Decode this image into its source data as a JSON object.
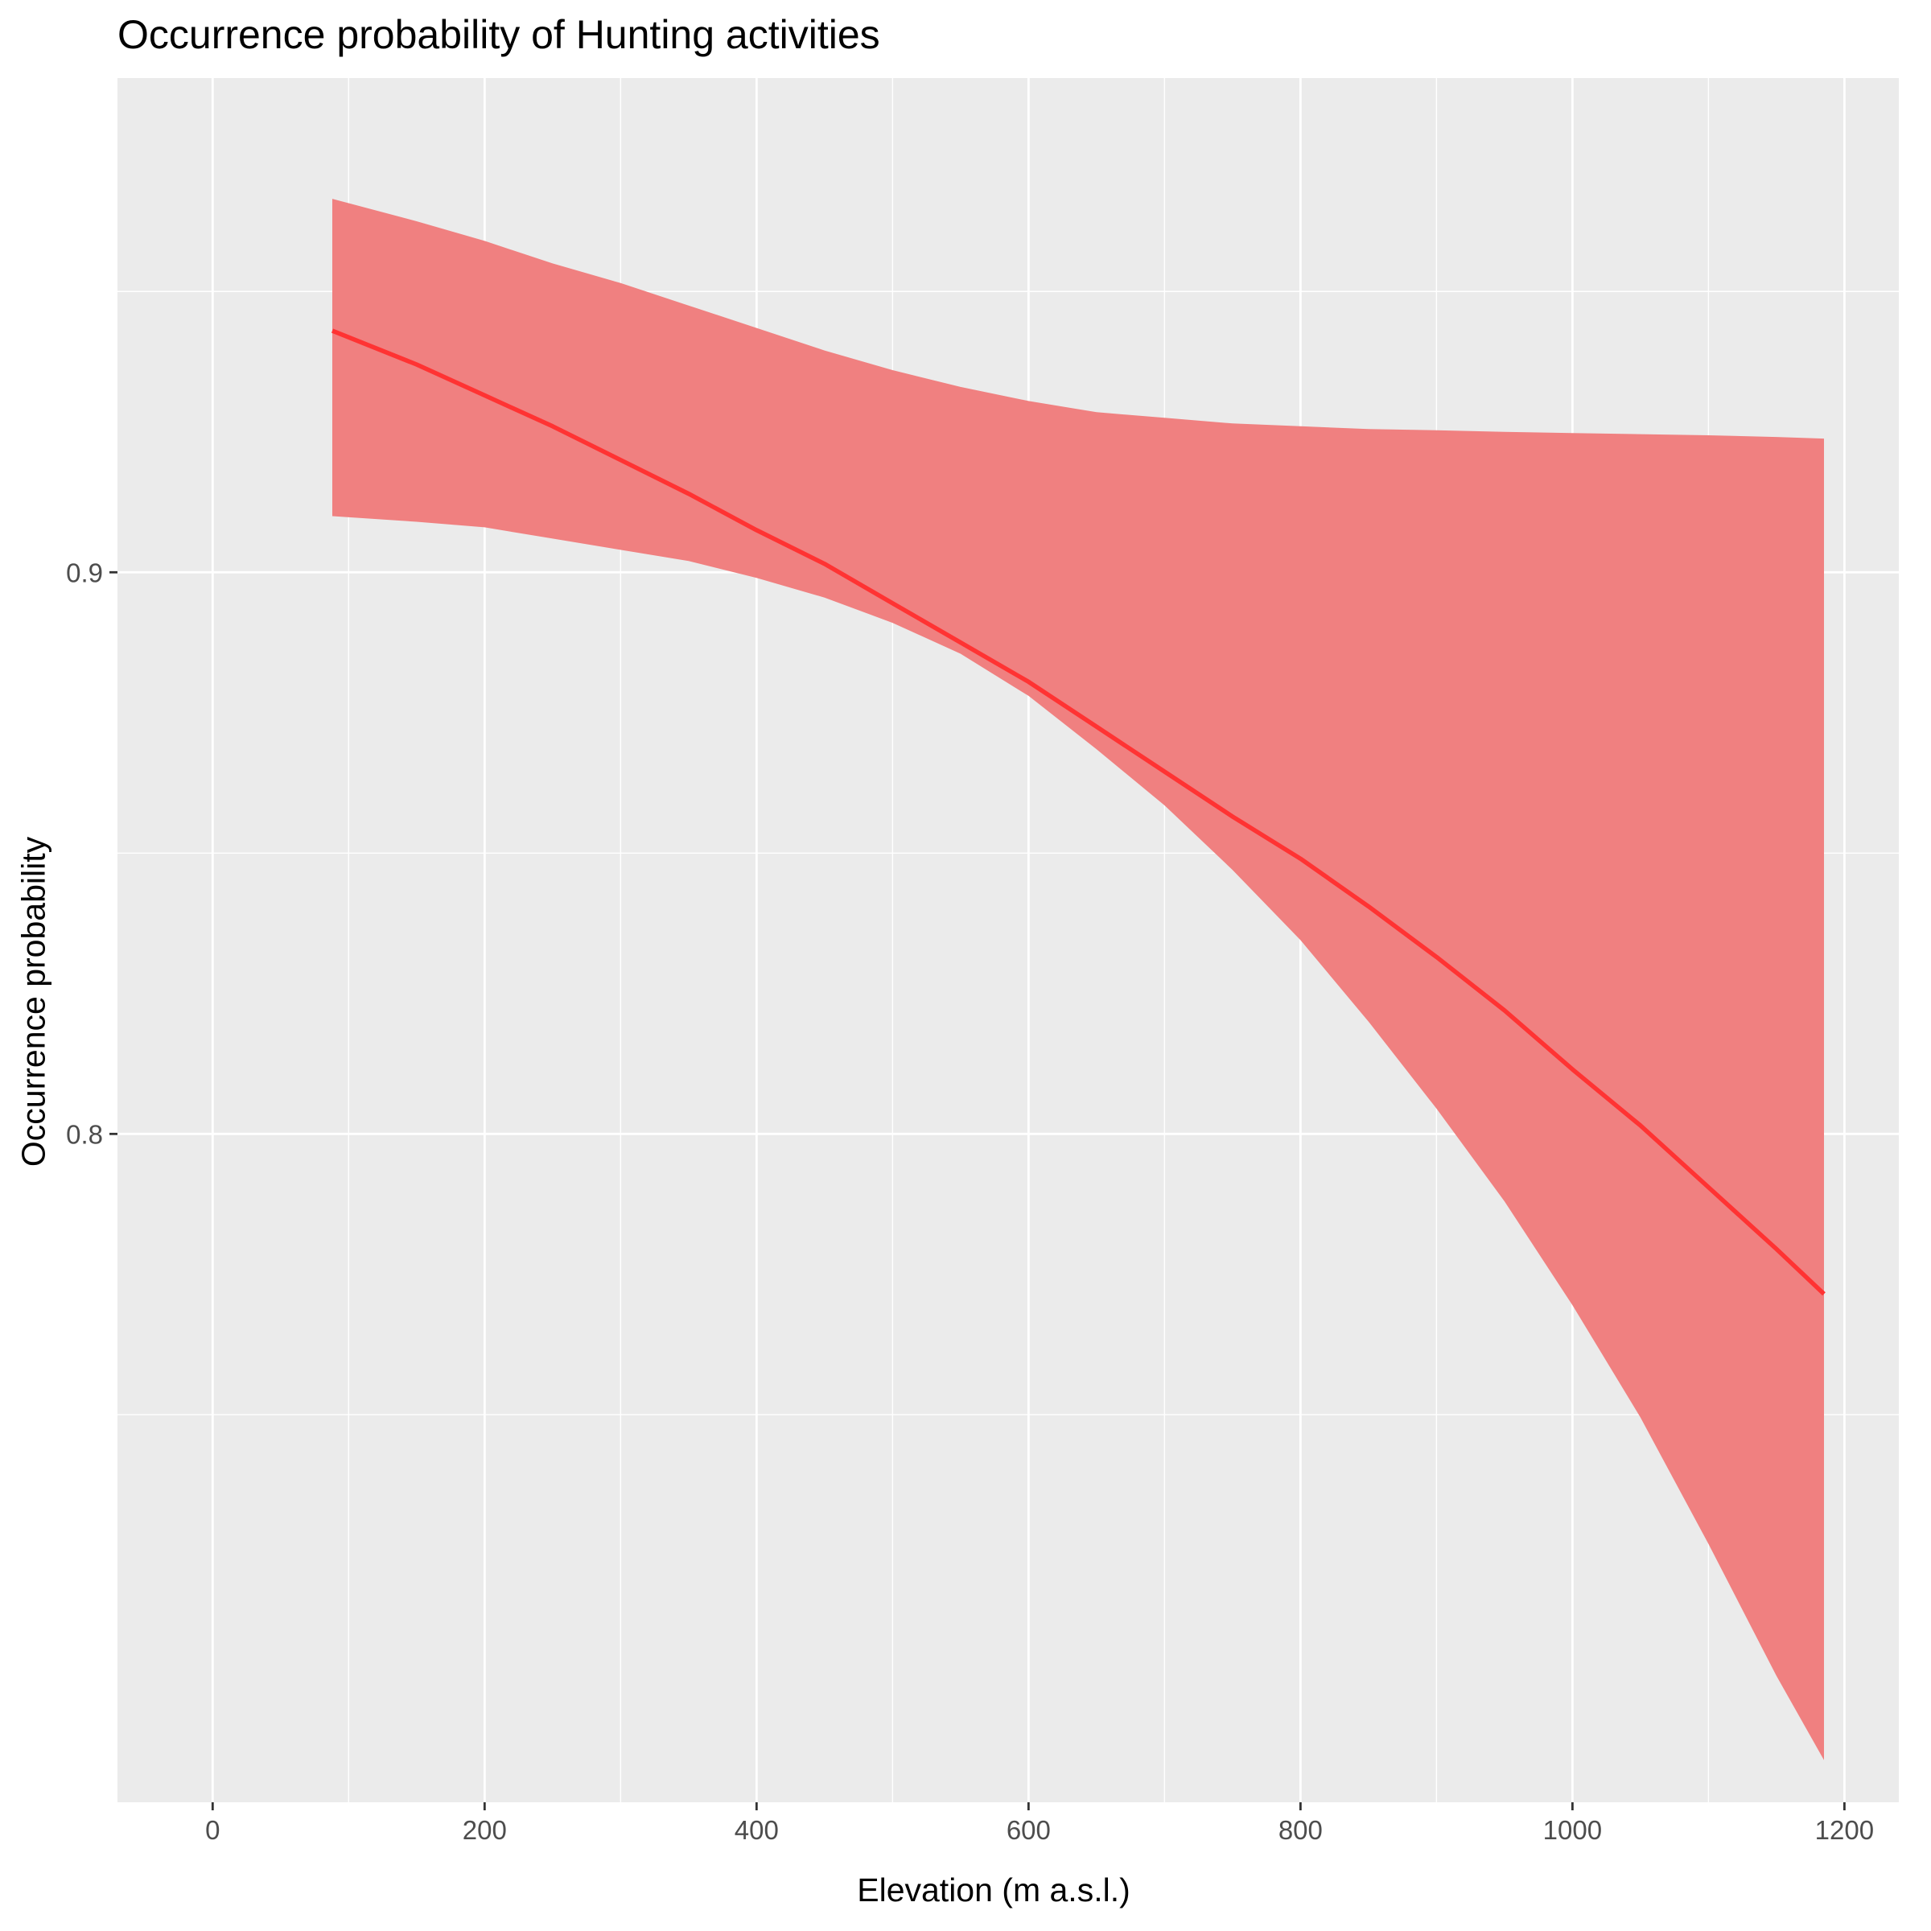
{
  "chart_data": {
    "type": "area",
    "title": "Occurrence probability of Hunting activities",
    "xlabel": "Elevation (m a.s.l.)",
    "ylabel": "Occurrence probability",
    "xlim": [
      -70,
      1240
    ],
    "ylim": [
      0.681,
      0.988
    ],
    "x_ticks": [
      0,
      200,
      400,
      600,
      800,
      1000,
      1200
    ],
    "x_tick_labels": [
      "0",
      "200",
      "400",
      "600",
      "800",
      "1000",
      "1200"
    ],
    "y_ticks": [
      0.8,
      0.9
    ],
    "y_tick_labels": [
      "0.8",
      "0.9"
    ],
    "grid": true,
    "colors": {
      "panel_background": "#EBEBEB",
      "grid_major": "#FFFFFF",
      "grid_minor": "#FFFFFF",
      "ribbon_fill": "#F08080",
      "line": "#FF3333",
      "tick_label": "#4D4D4D",
      "tick_mark": "#333333"
    },
    "series": [
      {
        "x": [
          88,
          150,
          200,
          250,
          300,
          350,
          400,
          450,
          500,
          550,
          600,
          650,
          700,
          750,
          800,
          850,
          900,
          950,
          1000,
          1050,
          1100,
          1150,
          1185
        ],
        "fit": [
          0.943,
          0.937,
          0.9315,
          0.926,
          0.92,
          0.914,
          0.9075,
          0.9015,
          0.8945,
          0.8875,
          0.8805,
          0.8725,
          0.8645,
          0.8565,
          0.849,
          0.8405,
          0.8315,
          0.822,
          0.8115,
          0.8015,
          0.7905,
          0.7795,
          0.7715
        ],
        "lower": [
          0.91,
          0.909,
          0.908,
          0.906,
          0.904,
          0.902,
          0.899,
          0.8955,
          0.891,
          0.8855,
          0.878,
          0.8685,
          0.8585,
          0.847,
          0.8345,
          0.82,
          0.8045,
          0.788,
          0.7695,
          0.7495,
          0.727,
          0.7035,
          0.6885
        ],
        "upper": [
          0.9665,
          0.9625,
          0.959,
          0.955,
          0.9515,
          0.9475,
          0.9435,
          0.9395,
          0.936,
          0.933,
          0.9305,
          0.9285,
          0.9275,
          0.9265,
          0.926,
          0.9255,
          0.9253,
          0.925,
          0.9248,
          0.9246,
          0.9244,
          0.9241,
          0.9238
        ]
      }
    ]
  }
}
